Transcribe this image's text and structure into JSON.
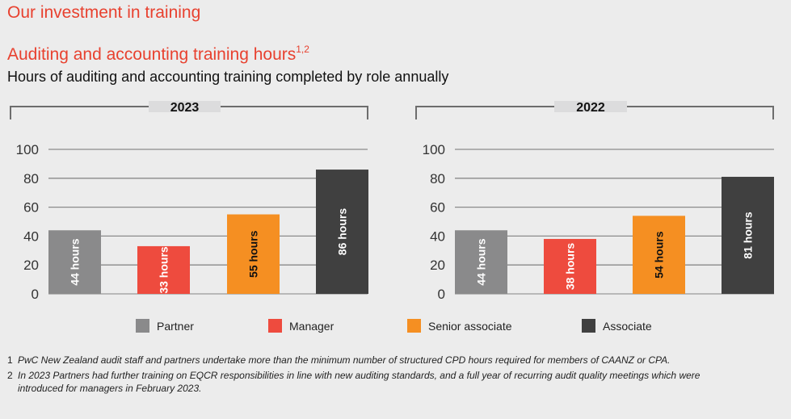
{
  "page_title": "Our investment in training",
  "title": "Auditing and accounting training hours",
  "title_superscript": "1,2",
  "subtitle": "Hours of auditing and accounting training completed by role annually",
  "colors": {
    "Partner": "#8a8a8b",
    "Manager": "#ee4b3e",
    "Senior associate": "#f58f22",
    "Associate": "#404040",
    "title": "#e8412f"
  },
  "chart_data": [
    {
      "type": "bar",
      "title": "2023",
      "categories": [
        "Partner",
        "Manager",
        "Senior associate",
        "Associate"
      ],
      "values": [
        44,
        33,
        55,
        86
      ],
      "data_labels": [
        "44 hours",
        "33 hours",
        "55 hours",
        "86 hours"
      ],
      "ylim": [
        0,
        100
      ],
      "yticks": [
        "0",
        "20",
        "40",
        "60",
        "80",
        "100"
      ],
      "grid": true
    },
    {
      "type": "bar",
      "title": "2022",
      "categories": [
        "Partner",
        "Manager",
        "Senior associate",
        "Associate"
      ],
      "values": [
        44,
        38,
        54,
        81
      ],
      "data_labels": [
        "44 hours",
        "38 hours",
        "54 hours",
        "81 hours"
      ],
      "ylim": [
        0,
        100
      ],
      "yticks": [
        "0",
        "20",
        "40",
        "60",
        "80",
        "100"
      ],
      "grid": true
    }
  ],
  "legend": [
    {
      "label": "Partner"
    },
    {
      "label": "Manager"
    },
    {
      "label": "Senior associate"
    },
    {
      "label": "Associate"
    }
  ],
  "footnotes": [
    {
      "num": "1",
      "text": "PwC New Zealand audit staff and partners undertake more than the minimum number of structured CPD hours required for members of CAANZ or CPA."
    },
    {
      "num": "2",
      "text": "In 2023 Partners had further training on EQCR responsibilities in line with new auditing standards, and a full year of recurring audit quality meetings which were introduced for managers in February 2023."
    }
  ]
}
